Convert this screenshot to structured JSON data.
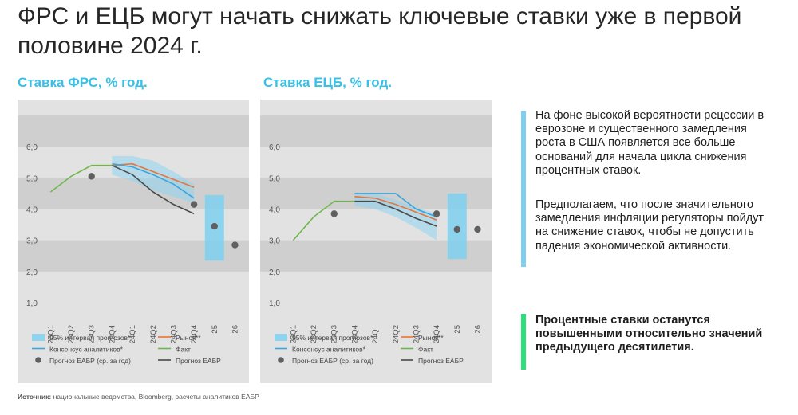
{
  "title": "ФРС и ЕЦБ могут начать снижать ключевые ставки уже в первой половине 2024 г.",
  "colors": {
    "accent": "#39c0e6",
    "panel_bg": "#e2e2e2",
    "band": "#cfcfcf",
    "interval": "#8fd3ee",
    "consensus": "#3aa6dc",
    "market": "#e8743b",
    "fact": "#6fb74a",
    "forecast_line": "#4a4a4a",
    "forecast_dot": "#606060",
    "bar_blue": "#7fd0f0",
    "bar_green": "#2bdf7a"
  },
  "legend": {
    "interval": "95% интервал прогнозов*",
    "market": "Рынок**",
    "consensus": "Консенсус аналитиков*",
    "fact": "Факт",
    "eabr_dot": "Прогноз ЕАБР (ср. за год)",
    "eabr_line": "Прогноз ЕАБР"
  },
  "notes": {
    "paragraph1": "На фоне высокой вероятности рецессии в еврозоне и существенного замедления роста в США появляется все больше оснований для начала цикла снижения процентных ставок.",
    "paragraph2": "Предполагаем, что после значительного замедления инфляции регуляторы пойдут на снижение ставок, чтобы не допустить падения экономической активности.",
    "conclusion": "Процентные ставки останутся повышенными относительно значений предыдущего десятилетия."
  },
  "source": {
    "label": "Источник:",
    "text": " национальные ведомства, Bloomberg, расчеты аналитиков ЕАБР"
  },
  "chart_data": [
    {
      "type": "line",
      "title": "Ставка ФРС, % год.",
      "categories": [
        "23Q1",
        "23Q2",
        "23Q3",
        "23Q4",
        "24Q1",
        "24Q2",
        "24Q3",
        "24Q4",
        "25",
        "26"
      ],
      "ylim": [
        1.0,
        6.0
      ],
      "yticks": [
        "1,0",
        "2,0",
        "3,0",
        "4,0",
        "5,0",
        "6,0"
      ],
      "series": [
        {
          "name": "Факт",
          "x": [
            "23Q1",
            "23Q2",
            "23Q3",
            "23Q4"
          ],
          "values": [
            4.55,
            5.05,
            5.4,
            5.4
          ]
        },
        {
          "name": "Рынок**",
          "x": [
            "23Q4",
            "24Q1",
            "24Q2",
            "24Q3",
            "24Q4"
          ],
          "values": [
            5.4,
            5.45,
            5.2,
            4.95,
            4.7
          ]
        },
        {
          "name": "Консенсус аналитиков*",
          "x": [
            "23Q4",
            "24Q1",
            "24Q2",
            "24Q3",
            "24Q4"
          ],
          "values": [
            5.45,
            5.35,
            5.1,
            4.8,
            4.35
          ]
        },
        {
          "name": "Прогноз ЕАБР",
          "x": [
            "23Q4",
            "24Q1",
            "24Q2",
            "24Q3",
            "24Q4"
          ],
          "values": [
            5.4,
            5.1,
            4.55,
            4.15,
            3.85
          ]
        },
        {
          "name": "95% интервал прогнозов*",
          "type": "band",
          "x": [
            "23Q4",
            "24Q1",
            "24Q2",
            "24Q3",
            "24Q4"
          ],
          "upper": [
            5.7,
            5.7,
            5.55,
            5.2,
            4.8
          ],
          "lower": [
            5.1,
            4.9,
            4.6,
            4.4,
            4.2
          ]
        },
        {
          "name": "Прогноз ЕАБР (ср. за год)",
          "type": "points",
          "x": [
            "23Q3",
            "24Q4",
            "25",
            "26"
          ],
          "values": [
            5.05,
            4.15,
            3.45,
            2.85
          ]
        },
        {
          "name": "95% интервал прогнозов*",
          "type": "range",
          "x": [
            "25"
          ],
          "upper": [
            4.45
          ],
          "lower": [
            2.35
          ]
        }
      ]
    },
    {
      "type": "line",
      "title": "Ставка ЕЦБ, % год.",
      "categories": [
        "23Q1",
        "23Q2",
        "23Q3",
        "23Q4",
        "24Q1",
        "24Q2",
        "24Q3",
        "24Q4",
        "25",
        "26"
      ],
      "ylim": [
        1.0,
        6.0
      ],
      "yticks": [
        "1,0",
        "2,0",
        "3,0",
        "4,0",
        "5,0",
        "6,0"
      ],
      "series": [
        {
          "name": "Факт",
          "x": [
            "23Q1",
            "23Q2",
            "23Q3",
            "23Q4"
          ],
          "values": [
            3.0,
            3.75,
            4.25,
            4.25
          ]
        },
        {
          "name": "Рынок**",
          "x": [
            "23Q4",
            "24Q1",
            "24Q2",
            "24Q3",
            "24Q4"
          ],
          "values": [
            4.4,
            4.35,
            4.15,
            3.9,
            3.65
          ]
        },
        {
          "name": "Консенсус аналитиков*",
          "x": [
            "23Q4",
            "24Q1",
            "24Q2",
            "24Q3",
            "24Q4"
          ],
          "values": [
            4.5,
            4.5,
            4.5,
            4.0,
            3.75
          ]
        },
        {
          "name": "Прогноз ЕАБР",
          "x": [
            "23Q4",
            "24Q1",
            "24Q2",
            "24Q3",
            "24Q4"
          ],
          "values": [
            4.25,
            4.25,
            4.0,
            3.7,
            3.45
          ]
        },
        {
          "name": "95% интервал прогнозов*",
          "type": "band",
          "x": [
            "23Q4",
            "24Q1",
            "24Q2",
            "24Q3",
            "24Q4"
          ],
          "upper": [
            4.5,
            4.5,
            4.3,
            4.05,
            3.85
          ],
          "lower": [
            4.1,
            4.0,
            3.75,
            3.4,
            3.0
          ]
        },
        {
          "name": "Прогноз ЕАБР (ср. за год)",
          "type": "points",
          "x": [
            "23Q3",
            "24Q4",
            "25",
            "26"
          ],
          "values": [
            3.85,
            3.85,
            3.35,
            3.35
          ]
        },
        {
          "name": "95% интервал прогнозов*",
          "type": "range",
          "x": [
            "25"
          ],
          "upper": [
            4.5
          ],
          "lower": [
            2.4
          ]
        }
      ]
    }
  ]
}
